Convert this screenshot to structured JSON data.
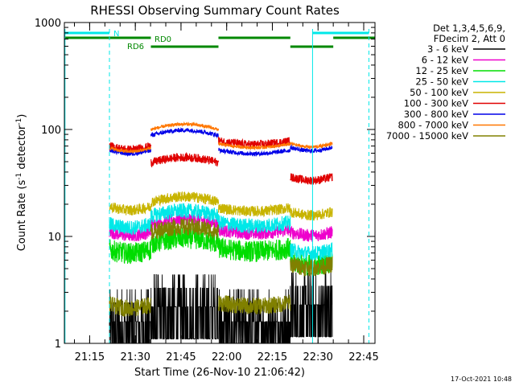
{
  "chart_data": {
    "type": "line",
    "title": "RHESSI Observing Summary Count Rates",
    "xlabel": "Start Time (26-Nov-10 21:06:42)",
    "ylabel_main": "Count Rate (s",
    "ylabel_sup1": "-1",
    "ylabel_mid": " detector",
    "ylabel_sup2": "-1",
    "ylabel_end": ")",
    "yscale": "log",
    "ylim": [
      1,
      1000
    ],
    "xlim_minutes": [
      0,
      102
    ],
    "x_ticks": [
      {
        "minute": 8.3,
        "label": "21:15"
      },
      {
        "minute": 23.3,
        "label": "21:30"
      },
      {
        "minute": 38.3,
        "label": "21:45"
      },
      {
        "minute": 53.3,
        "label": "22:00"
      },
      {
        "minute": 68.3,
        "label": "22:15"
      },
      {
        "minute": 83.3,
        "label": "22:30"
      },
      {
        "minute": 98.3,
        "label": "22:45"
      }
    ],
    "y_ticks": [
      {
        "value": 1,
        "label": "1"
      },
      {
        "value": 10,
        "label": "10"
      },
      {
        "value": 100,
        "label": "100"
      },
      {
        "value": 1000,
        "label": "1000"
      }
    ],
    "legend": {
      "header1": "Det 1,3,4,5,6,9,",
      "header2": "FDecim 2, Att 0"
    },
    "segments_minutes": [
      [
        14.8,
        28.4
      ],
      [
        28.4,
        50.6
      ],
      [
        50.6,
        74.2
      ],
      [
        74.2,
        88
      ]
    ],
    "series": [
      {
        "name": "3 - 6 keV",
        "color": "#000000",
        "levels": [
          1.6,
          2.2,
          1.6,
          2.3
        ],
        "noise": "count"
      },
      {
        "name": "6 - 12 keV",
        "color": "#ee00cc",
        "levels": [
          11,
          13,
          11.5,
          11
        ],
        "noise": 0.06
      },
      {
        "name": "12 - 25 keV",
        "color": "#00dd00",
        "levels": [
          7.5,
          8.6,
          7.8,
          5.8
        ],
        "noise": 0.1
      },
      {
        "name": "25 - 50 keV",
        "color": "#00e8e8",
        "levels": [
          13,
          15.5,
          13.5,
          7.5
        ],
        "noise": 0.07
      },
      {
        "name": "50 - 100 keV",
        "color": "#c8b400",
        "levels": [
          19,
          21,
          18.5,
          17
        ],
        "noise": 0.05
      },
      {
        "name": "100 - 300 keV",
        "color": "#e00000",
        "levels": [
          70,
          49,
          78,
          36
        ],
        "noise": 0.04
      },
      {
        "name": "300 - 800 keV",
        "color": "#0000e8",
        "levels": [
          64,
          88,
          64,
          68
        ],
        "noise": 0.02
      },
      {
        "name": "800 - 7000 keV",
        "color": "#ff7700",
        "levels": [
          67,
          100,
          73,
          74
        ],
        "noise": 0.015
      },
      {
        "name": "7000 - 15000 keV",
        "color": "#808000",
        "levels": [
          2.3,
          11,
          2.4,
          5.5
        ],
        "noise": 0.08
      }
    ],
    "state_bars": {
      "night": {
        "label": "N",
        "color": "#00e8e8",
        "intervals_minutes": [
          [
            0,
            14.8
          ],
          [
            81.5,
            100
          ]
        ]
      },
      "rd0": {
        "label": "RD0",
        "color": "#008800",
        "intervals_minutes": [
          [
            0,
            28.4
          ],
          [
            50.6,
            74.2
          ],
          [
            88.3,
            102
          ]
        ]
      },
      "rd6": {
        "label": "RD6",
        "color": "#008800",
        "intervals_minutes": [
          [
            28.4,
            50.6
          ],
          [
            74.2,
            88.3
          ]
        ]
      }
    },
    "vertical_markers_minutes": [
      {
        "minute": 0.2,
        "style": "solid"
      },
      {
        "minute": 14.8,
        "style": "dashed"
      },
      {
        "minute": 81.5,
        "style": "solid"
      },
      {
        "minute": 100,
        "style": "dashed"
      }
    ]
  },
  "footer": {
    "generated": "17-Oct-2021 10:48"
  }
}
